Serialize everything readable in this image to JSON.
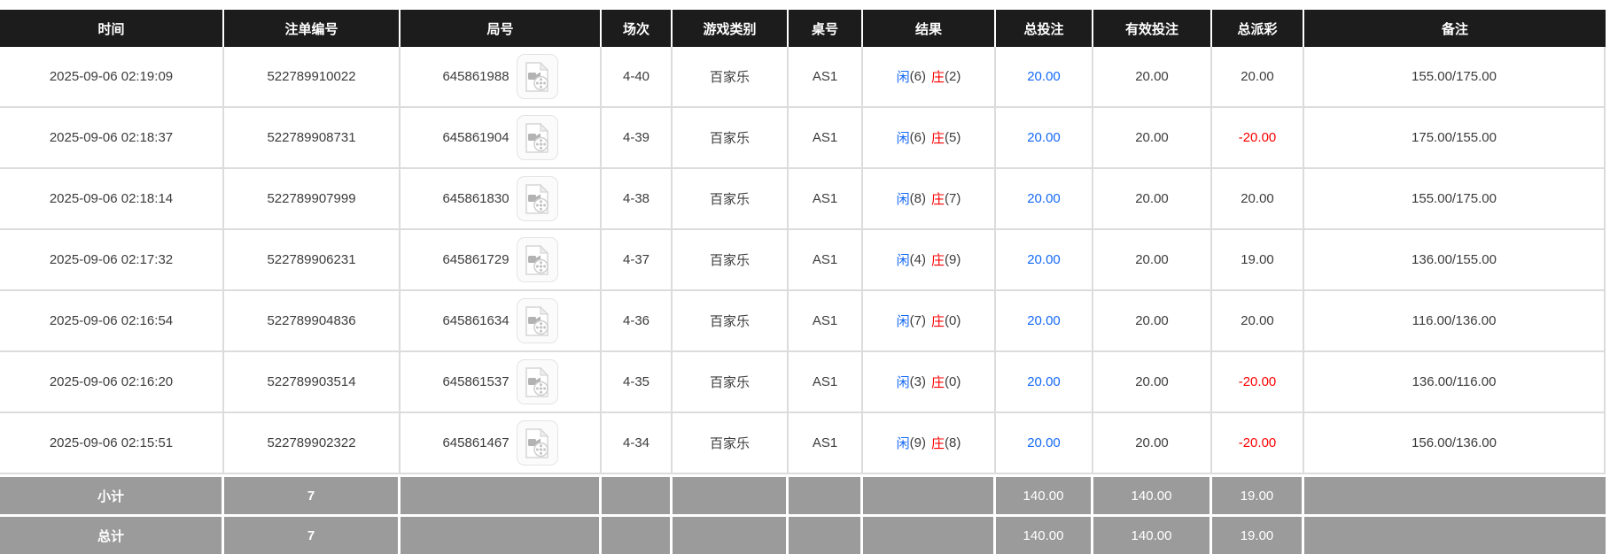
{
  "table": {
    "columns": [
      {
        "key": "time",
        "label": "时间"
      },
      {
        "key": "bet_id",
        "label": "注单编号"
      },
      {
        "key": "round",
        "label": "局号"
      },
      {
        "key": "session",
        "label": "场次"
      },
      {
        "key": "game_type",
        "label": "游戏类别"
      },
      {
        "key": "table_no",
        "label": "桌号"
      },
      {
        "key": "result",
        "label": "结果"
      },
      {
        "key": "total_bet",
        "label": "总投注"
      },
      {
        "key": "valid_bet",
        "label": "有效投注"
      },
      {
        "key": "payout",
        "label": "总派彩"
      },
      {
        "key": "remark",
        "label": "备注"
      }
    ],
    "result_labels": {
      "player": "闲",
      "banker": "庄"
    },
    "rows": [
      {
        "time": "2025-09-06 02:19:09",
        "bet_id": "522789910022",
        "round": "645861988",
        "video_icon": true,
        "session": "4-40",
        "game_type": "百家乐",
        "table_no": "AS1",
        "player": "6",
        "banker": "2",
        "total_bet": "20.00",
        "valid_bet": "20.00",
        "payout": "20.00",
        "remark": "155.00/175.00"
      },
      {
        "time": "2025-09-06 02:18:37",
        "bet_id": "522789908731",
        "round": "645861904",
        "video_icon": true,
        "session": "4-39",
        "game_type": "百家乐",
        "table_no": "AS1",
        "player": "6",
        "banker": "5",
        "total_bet": "20.00",
        "valid_bet": "20.00",
        "payout": "-20.00",
        "remark": "175.00/155.00"
      },
      {
        "time": "2025-09-06 02:18:14",
        "bet_id": "522789907999",
        "round": "645861830",
        "video_icon": true,
        "session": "4-38",
        "game_type": "百家乐",
        "table_no": "AS1",
        "player": "8",
        "banker": "7",
        "total_bet": "20.00",
        "valid_bet": "20.00",
        "payout": "20.00",
        "remark": "155.00/175.00"
      },
      {
        "time": "2025-09-06 02:17:32",
        "bet_id": "522789906231",
        "round": "645861729",
        "video_icon": true,
        "session": "4-37",
        "game_type": "百家乐",
        "table_no": "AS1",
        "player": "4",
        "banker": "9",
        "total_bet": "20.00",
        "valid_bet": "20.00",
        "payout": "19.00",
        "remark": "136.00/155.00"
      },
      {
        "time": "2025-09-06 02:16:54",
        "bet_id": "522789904836",
        "round": "645861634",
        "video_icon": true,
        "session": "4-36",
        "game_type": "百家乐",
        "table_no": "AS1",
        "player": "7",
        "banker": "0",
        "total_bet": "20.00",
        "valid_bet": "20.00",
        "payout": "20.00",
        "remark": "116.00/136.00"
      },
      {
        "time": "2025-09-06 02:16:20",
        "bet_id": "522789903514",
        "round": "645861537",
        "video_icon": true,
        "session": "4-35",
        "game_type": "百家乐",
        "table_no": "AS1",
        "player": "3",
        "banker": "0",
        "total_bet": "20.00",
        "valid_bet": "20.00",
        "payout": "-20.00",
        "remark": "136.00/116.00"
      },
      {
        "time": "2025-09-06 02:15:51",
        "bet_id": "522789902322",
        "round": "645861467",
        "video_icon": true,
        "session": "4-34",
        "game_type": "百家乐",
        "table_no": "AS1",
        "player": "9",
        "banker": "8",
        "total_bet": "20.00",
        "valid_bet": "20.00",
        "payout": "-20.00",
        "remark": "156.00/136.00"
      }
    ],
    "footer_rows": [
      {
        "label": "小计",
        "count": "7",
        "total_bet": "140.00",
        "valid_bet": "140.00",
        "payout": "19.00"
      },
      {
        "label": "总计",
        "count": "7",
        "total_bet": "140.00",
        "valid_bet": "140.00",
        "payout": "19.00"
      }
    ],
    "icons": {
      "video_icon_name": "video-icon"
    },
    "colors": {
      "header_bg": "#1c1c1c",
      "footer_bg": "#9b9b9b",
      "blue": "#1569f7",
      "red": "#fb0000",
      "text": "#3c3c3c",
      "border": "#dcdcdc"
    }
  }
}
